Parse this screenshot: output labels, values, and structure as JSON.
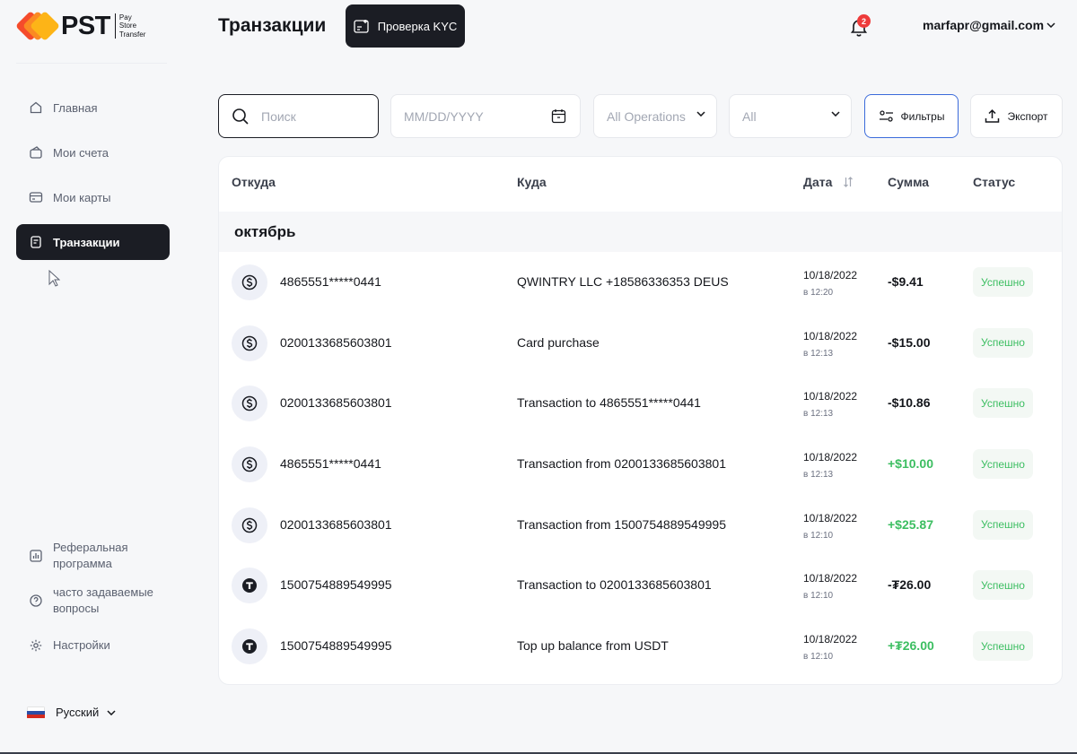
{
  "brand": {
    "name": "PST",
    "sub": [
      "Pay",
      "Store",
      "Transfer"
    ],
    "colors": [
      "#f54b2b",
      "#fb8a23",
      "#fdb417"
    ]
  },
  "sidebar": {
    "items": [
      {
        "label": "Главная",
        "icon": "home-icon",
        "active": false
      },
      {
        "label": "Мои счета",
        "icon": "wallet-icon",
        "active": false
      },
      {
        "label": "Мои карты",
        "icon": "card-icon",
        "active": false
      },
      {
        "label": "Транзакции",
        "icon": "receipt-icon",
        "active": true
      }
    ],
    "bottom": [
      {
        "label": "Реферальная программа",
        "icon": "chart-icon"
      },
      {
        "label": "часто задаваемые вопросы",
        "icon": "help-icon"
      },
      {
        "label": "Настройки",
        "icon": "gear-icon"
      }
    ],
    "language": "Русский"
  },
  "header": {
    "title": "Транзакции",
    "kyc_label": "Проверка KYC",
    "notifications": "2",
    "user_email": "marfapr@gmail.com"
  },
  "toolbar": {
    "search_placeholder": "Поиск",
    "date_placeholder": "MM/DD/YYYY",
    "operations_value": "All Operations",
    "status_value": "All",
    "filters_label": "Фильтры",
    "export_label": "Экспорт"
  },
  "table": {
    "columns": {
      "from": "Откуда",
      "to": "Куда",
      "date": "Дата",
      "amount": "Сумма",
      "status": "Статус"
    },
    "month": "октябрь",
    "rows": [
      {
        "icon": "dollar-coin-icon",
        "from": "4865551*****0441",
        "to": "QWINTRY LLC +18586336353 DEUS",
        "date": "10/18/2022",
        "time": "в 12:20",
        "amount": "-$9.41",
        "sign": "neg",
        "status": "Успешно"
      },
      {
        "icon": "dollar-coin-icon",
        "from": "0200133685603801",
        "to": "Card purchase",
        "date": "10/18/2022",
        "time": "в 12:13",
        "amount": "-$15.00",
        "sign": "neg",
        "status": "Успешно"
      },
      {
        "icon": "dollar-coin-icon",
        "from": "0200133685603801",
        "to": "Transaction to 4865551*****0441",
        "date": "10/18/2022",
        "time": "в 12:13",
        "amount": "-$10.86",
        "sign": "neg",
        "status": "Успешно"
      },
      {
        "icon": "dollar-coin-icon",
        "from": "4865551*****0441",
        "to": "Transaction from 0200133685603801",
        "date": "10/18/2022",
        "time": "в 12:13",
        "amount": "+$10.00",
        "sign": "pos",
        "status": "Успешно"
      },
      {
        "icon": "dollar-coin-icon",
        "from": "0200133685603801",
        "to": "Transaction from 1500754889549995",
        "date": "10/18/2022",
        "time": "в 12:10",
        "amount": "+$25.87",
        "sign": "pos",
        "status": "Успешно"
      },
      {
        "icon": "tether-coin-icon",
        "from": "1500754889549995",
        "to": "Transaction to 0200133685603801",
        "date": "10/18/2022",
        "time": "в 12:10",
        "amount": "-₮26.00",
        "sign": "neg",
        "status": "Успешно"
      },
      {
        "icon": "tether-coin-icon",
        "from": "1500754889549995",
        "to": "Top up balance from USDT",
        "date": "10/18/2022",
        "time": "в 12:10",
        "amount": "+₮26.00",
        "sign": "pos",
        "status": "Успешно"
      }
    ]
  }
}
